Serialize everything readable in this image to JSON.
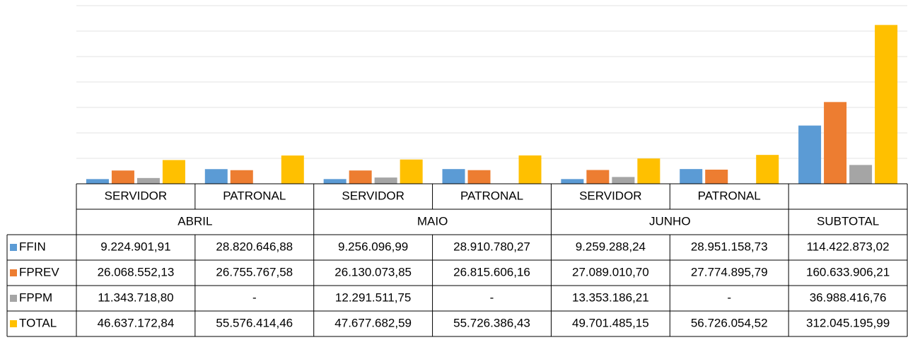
{
  "chart_data": {
    "type": "bar",
    "groups": [
      {
        "name": "ABRIL",
        "categories": [
          "SERVIDOR",
          "PATRONAL"
        ]
      },
      {
        "name": "MAIO",
        "categories": [
          "SERVIDOR",
          "PATRONAL"
        ]
      },
      {
        "name": "JUNHO",
        "categories": [
          "SERVIDOR",
          "PATRONAL"
        ]
      },
      {
        "name": "SUBTOTAL",
        "categories": [
          null
        ]
      }
    ],
    "series": [
      {
        "name": "FFIN",
        "color": "#5b9bd5",
        "values": [
          9224901.91,
          28820646.88,
          9256096.99,
          28910780.27,
          9259288.24,
          28951158.73,
          114422873.02
        ],
        "value_labels": [
          "9.224.901,91",
          "28.820.646,88",
          "9.256.096,99",
          "28.910.780,27",
          "9.259.288,24",
          "28.951.158,73",
          "114.422.873,02"
        ]
      },
      {
        "name": "FPREV",
        "color": "#ed7d31",
        "values": [
          26068552.13,
          26755767.58,
          26130073.85,
          26815606.16,
          27089010.7,
          27774895.79,
          160633906.21
        ],
        "value_labels": [
          "26.068.552,13",
          "26.755.767,58",
          "26.130.073,85",
          "26.815.606,16",
          "27.089.010,70",
          "27.774.895,79",
          "160.633.906,21"
        ]
      },
      {
        "name": "FPPM",
        "color": "#a5a5a5",
        "values": [
          11343718.8,
          null,
          12291511.75,
          null,
          13353186.21,
          null,
          36988416.76
        ],
        "value_labels": [
          "11.343.718,80",
          "-",
          "12.291.511,75",
          "-",
          "13.353.186,21",
          "-",
          "36.988.416,76"
        ]
      },
      {
        "name": "TOTAL",
        "color": "#ffc000",
        "values": [
          46637172.84,
          55576414.46,
          47677682.59,
          55726386.43,
          49701485.15,
          56726054.52,
          312045195.99
        ],
        "value_labels": [
          "46.637.172,84",
          "55.576.414,46",
          "47.677.682,59",
          "55.726.386,43",
          "49.701.485,15",
          "56.726.054,52",
          "312.045.195,99"
        ]
      }
    ],
    "ylim": [
      0,
      350000000
    ],
    "yticks": [
      0,
      50000000,
      100000000,
      150000000,
      200000000,
      250000000,
      300000000,
      350000000
    ],
    "grid": true
  }
}
